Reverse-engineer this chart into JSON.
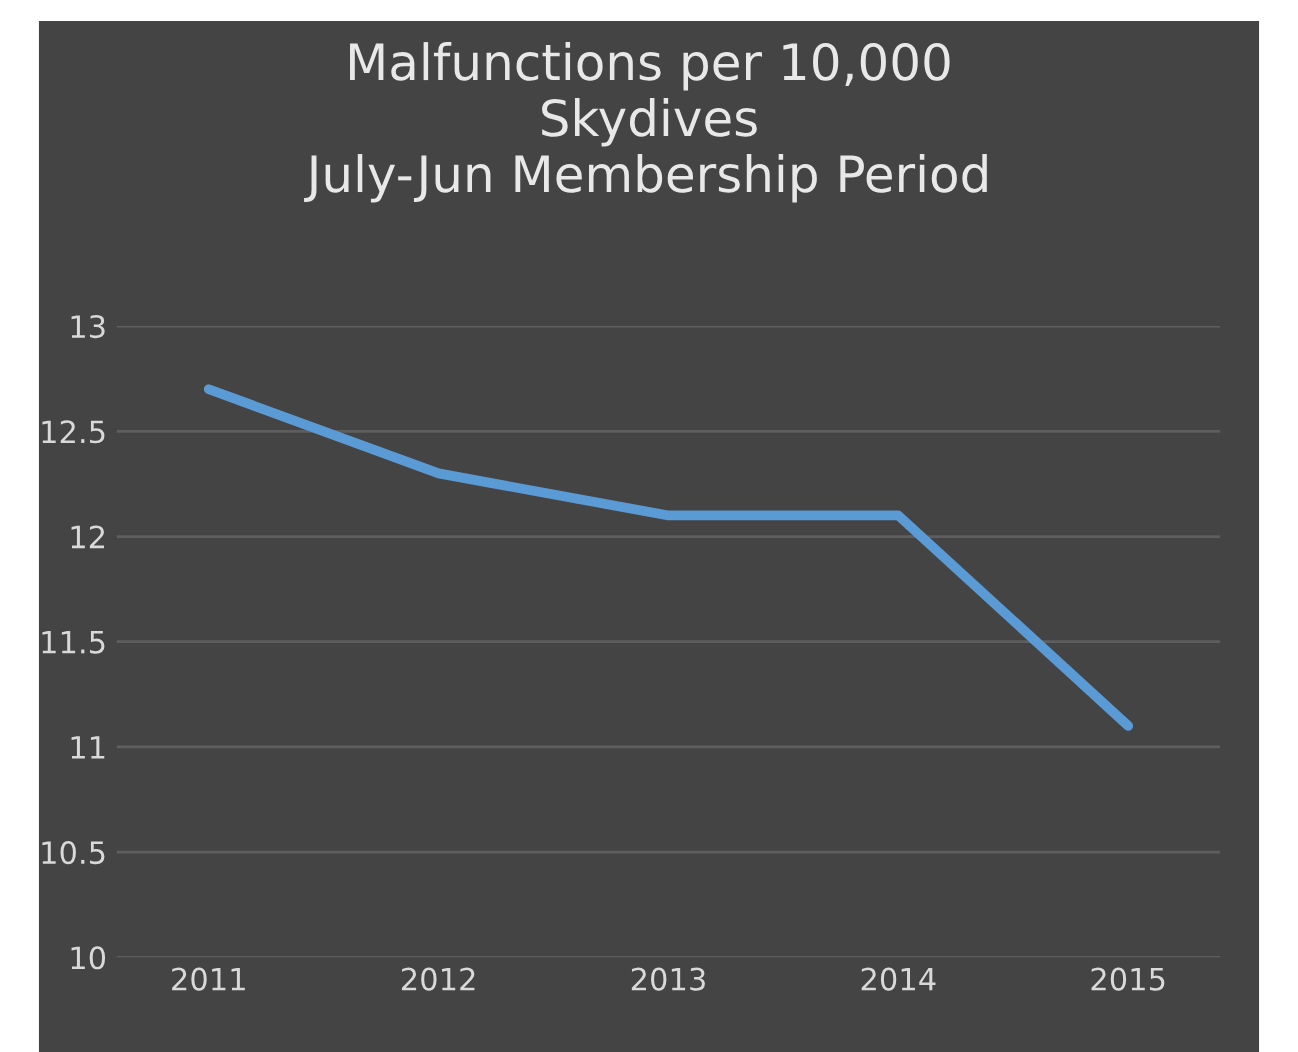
{
  "chart_data": {
    "type": "line",
    "title": "Malfunctions per 10,000\nSkydives\nJuly-Jun Membership Period",
    "categories": [
      "2011",
      "2012",
      "2013",
      "2014",
      "2015"
    ],
    "series": [
      {
        "color": "#5b9bd5",
        "values": [
          12.7,
          12.3,
          12.1,
          12.1,
          11.1
        ]
      }
    ],
    "ylim": [
      10,
      13
    ],
    "yticks": [
      10,
      10.5,
      11,
      11.5,
      12,
      12.5,
      13
    ],
    "grid": "y",
    "marker": "none",
    "line_style": "solid",
    "legend": false
  }
}
